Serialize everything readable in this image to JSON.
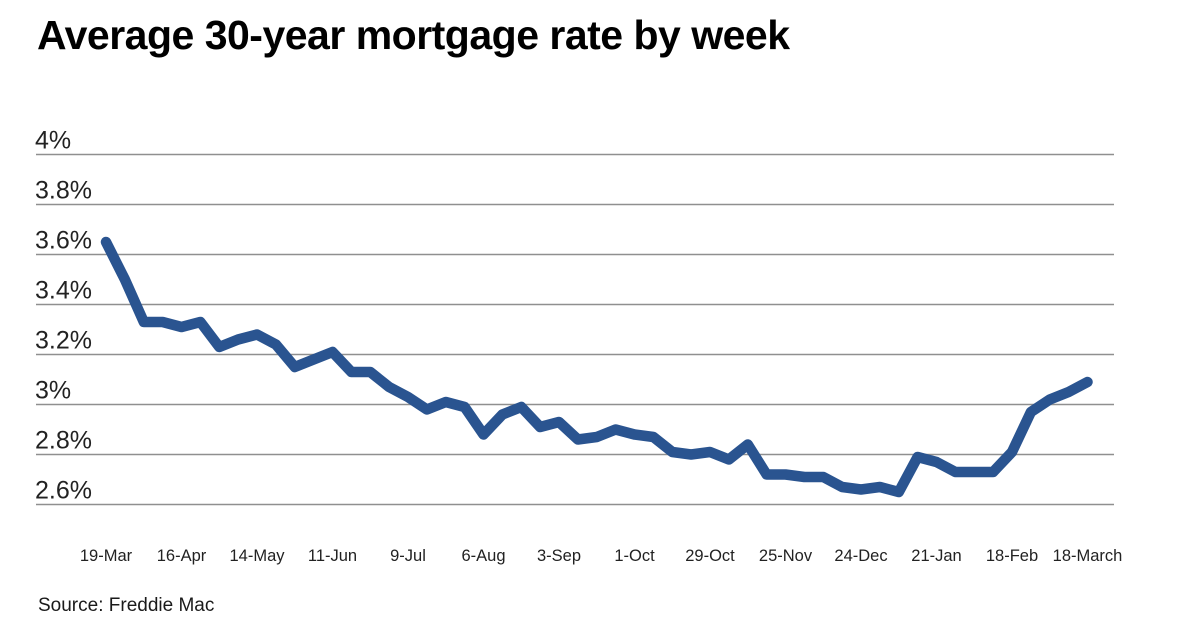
{
  "page": {
    "title": "Average 30-year mortgage rate by week",
    "source": "Source: Freddie Mac"
  },
  "colors": {
    "background": "#ffffff",
    "line": "#2a5490",
    "grid": "#8f8f8f",
    "title_text": "#000000",
    "axis_text": "#222222"
  },
  "chart_data": {
    "type": "line",
    "title": "Average 30-year mortgage rate by week",
    "source": "Source: Freddie Mac",
    "x_frequency": "weekly",
    "series": [
      {
        "name": "Average 30-year mortgage rate (%)",
        "values": [
          3.65,
          3.5,
          3.33,
          3.33,
          3.31,
          3.33,
          3.23,
          3.26,
          3.28,
          3.24,
          3.15,
          3.18,
          3.21,
          3.13,
          3.13,
          3.07,
          3.03,
          2.98,
          3.01,
          2.99,
          2.88,
          2.96,
          2.99,
          2.91,
          2.93,
          2.86,
          2.87,
          2.9,
          2.88,
          2.87,
          2.81,
          2.8,
          2.81,
          2.78,
          2.84,
          2.72,
          2.72,
          2.71,
          2.71,
          2.67,
          2.66,
          2.67,
          2.65,
          2.79,
          2.77,
          2.73,
          2.73,
          2.73,
          2.81,
          2.97,
          3.02,
          3.05,
          3.09
        ]
      }
    ],
    "x_tick_labels": [
      "19-Mar",
      "16-Apr",
      "14-May",
      "11-Jun",
      "9-Jul",
      "6-Aug",
      "3-Sep",
      "1-Oct",
      "29-Oct",
      "25-Nov",
      "24-Dec",
      "21-Jan",
      "18-Feb",
      "18-March"
    ],
    "x_ticks_every_n_points": 4,
    "y_tick_labels": [
      "4%",
      "3.8%",
      "3.6%",
      "3.4%",
      "3.2%",
      "3%",
      "2.8%",
      "2.6%"
    ],
    "y_tick_values": [
      4.0,
      3.8,
      3.6,
      3.4,
      3.2,
      3.0,
      2.8,
      2.6
    ],
    "ylim": [
      2.6,
      4.0
    ],
    "grid": "horizontal",
    "legend": "none"
  }
}
